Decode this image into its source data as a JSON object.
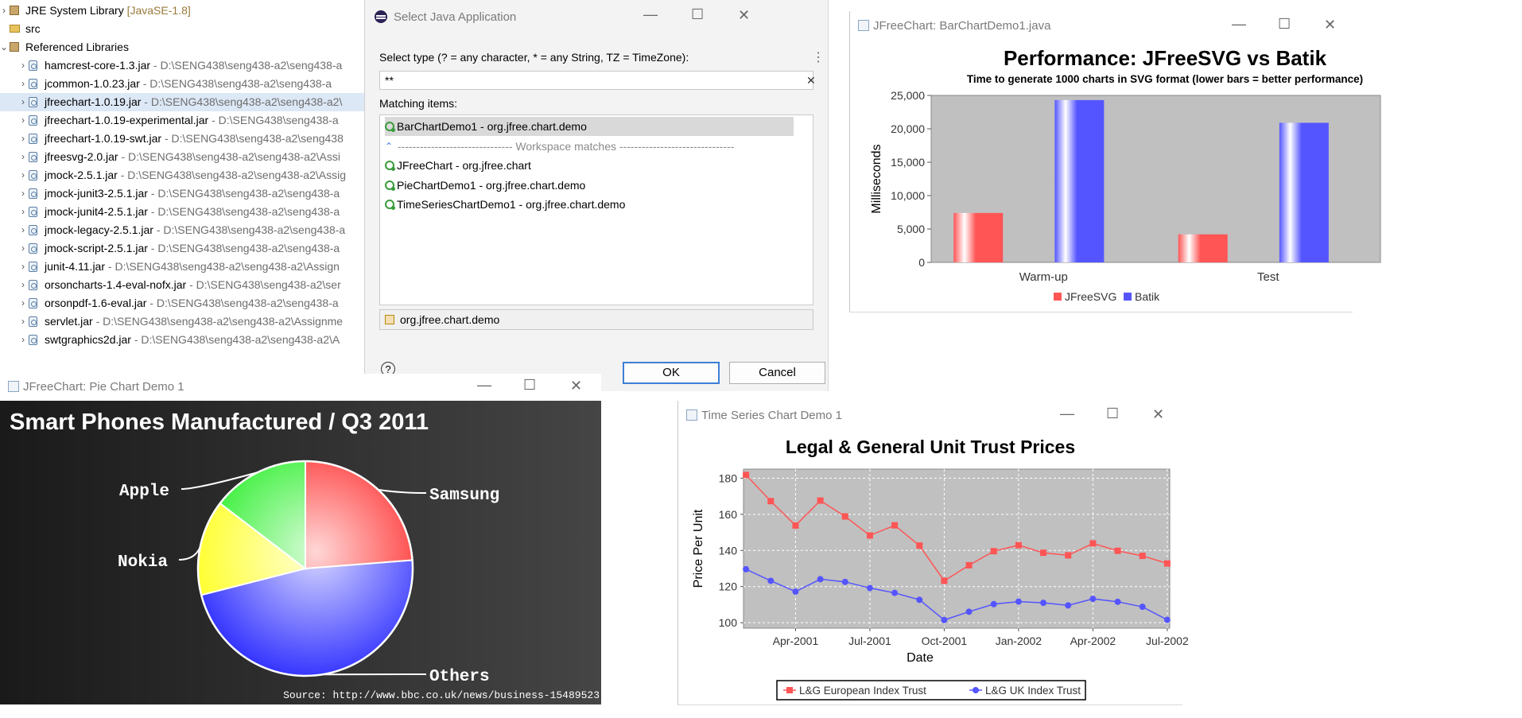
{
  "tree": {
    "items": [
      {
        "name": "JRE System Library",
        "path": "[JavaSE-1.8]",
        "expand": ">",
        "type": "lib",
        "top": 13,
        "indent": 12,
        "selected": false
      },
      {
        "name": "src",
        "path": "",
        "expand": "",
        "type": "src",
        "top": 36,
        "indent": 12,
        "selected": false
      },
      {
        "name": "Referenced Libraries",
        "path": "",
        "expand": "v",
        "type": "lib",
        "top": 59,
        "indent": 12,
        "selected": false
      },
      {
        "name": "hamcrest-core-1.3.jar",
        "path": " - D:\\SENG438\\seng438-a2\\seng438-a",
        "expand": ">",
        "type": "jar",
        "top": 82,
        "indent": 36,
        "selected": false
      },
      {
        "name": "jcommon-1.0.23.jar",
        "path": " - D:\\SENG438\\seng438-a2\\seng438-a",
        "expand": ">",
        "type": "jar",
        "top": 105,
        "indent": 36,
        "selected": false
      },
      {
        "name": "jfreechart-1.0.19.jar",
        "path": " - D:\\SENG438\\seng438-a2\\seng438-a2\\",
        "expand": ">",
        "type": "jar",
        "top": 128,
        "indent": 36,
        "selected": true
      },
      {
        "name": "jfreechart-1.0.19-experimental.jar",
        "path": " - D:\\SENG438\\seng438-a",
        "expand": ">",
        "type": "jar",
        "top": 151,
        "indent": 36,
        "selected": false
      },
      {
        "name": "jfreechart-1.0.19-swt.jar",
        "path": " - D:\\SENG438\\seng438-a2\\seng438",
        "expand": ">",
        "type": "jar",
        "top": 174,
        "indent": 36,
        "selected": false
      },
      {
        "name": "jfreesvg-2.0.jar",
        "path": " - D:\\SENG438\\seng438-a2\\seng438-a2\\Assi",
        "expand": ">",
        "type": "jar",
        "top": 197,
        "indent": 36,
        "selected": false
      },
      {
        "name": "jmock-2.5.1.jar",
        "path": " - D:\\SENG438\\seng438-a2\\seng438-a2\\Assig",
        "expand": ">",
        "type": "jar",
        "top": 220,
        "indent": 36,
        "selected": false
      },
      {
        "name": "jmock-junit3-2.5.1.jar",
        "path": " - D:\\SENG438\\seng438-a2\\seng438-a",
        "expand": ">",
        "type": "jar",
        "top": 243,
        "indent": 36,
        "selected": false
      },
      {
        "name": "jmock-junit4-2.5.1.jar",
        "path": " - D:\\SENG438\\seng438-a2\\seng438-a",
        "expand": ">",
        "type": "jar",
        "top": 266,
        "indent": 36,
        "selected": false
      },
      {
        "name": "jmock-legacy-2.5.1.jar",
        "path": " - D:\\SENG438\\seng438-a2\\seng438-a",
        "expand": ">",
        "type": "jar",
        "top": 289,
        "indent": 36,
        "selected": false
      },
      {
        "name": "jmock-script-2.5.1.jar",
        "path": " - D:\\SENG438\\seng438-a2\\seng438-a",
        "expand": ">",
        "type": "jar",
        "top": 312,
        "indent": 36,
        "selected": false
      },
      {
        "name": "junit-4.11.jar",
        "path": " - D:\\SENG438\\seng438-a2\\seng438-a2\\Assign",
        "expand": ">",
        "type": "jar",
        "top": 335,
        "indent": 36,
        "selected": false
      },
      {
        "name": "orsoncharts-1.4-eval-nofx.jar",
        "path": " - D:\\SENG438\\seng438-a2\\ser",
        "expand": ">",
        "type": "jar",
        "top": 358,
        "indent": 36,
        "selected": false
      },
      {
        "name": "orsonpdf-1.6-eval.jar",
        "path": " - D:\\SENG438\\seng438-a2\\seng438-a",
        "expand": ">",
        "type": "jar",
        "top": 381,
        "indent": 36,
        "selected": false
      },
      {
        "name": "servlet.jar",
        "path": " - D:\\SENG438\\seng438-a2\\seng438-a2\\Assignme",
        "expand": ">",
        "type": "jar",
        "top": 404,
        "indent": 36,
        "selected": false
      },
      {
        "name": "swtgraphics2d.jar",
        "path": " - D:\\SENG438\\seng438-a2\\seng438-a2\\A",
        "expand": ">",
        "type": "jar",
        "top": 427,
        "indent": 36,
        "selected": false
      }
    ]
  },
  "dialog": {
    "title": "Select Java Application",
    "select_label": "Select type (? = any character, * = any String, TZ = TimeZone):",
    "search_value": "**",
    "matching_label": "Matching items:",
    "items": [
      {
        "text": "BarChartDemo1 - org.jfree.chart.demo",
        "kind": "app",
        "selected": true
      },
      {
        "text": "------------------------------- Workspace matches -------------------------------",
        "kind": "sep",
        "selected": false
      },
      {
        "text": "JFreeChart - org.jfree.chart",
        "kind": "app",
        "selected": false
      },
      {
        "text": "PieChartDemo1 - org.jfree.chart.demo",
        "kind": "app",
        "selected": false
      },
      {
        "text": "TimeSeriesChartDemo1 - org.jfree.chart.demo",
        "kind": "app",
        "selected": false
      }
    ],
    "package_text": "org.jfree.chart.demo",
    "ok_label": "OK",
    "cancel_label": "Cancel",
    "help_glyph": "?",
    "clear_glyph": "✕",
    "menu_glyph": "⋮"
  },
  "window_controls": {
    "minimize": "—",
    "maximize": "☐",
    "close": "✕"
  },
  "bar_window": {
    "title": "JFreeChart: BarChartDemo1.java",
    "chart_data": {
      "type": "bar",
      "title": "Performance: JFreeSVG vs Batik",
      "subtitle": "Time to generate 1000 charts in SVG format (lower bars = better performance)",
      "xlabel": "",
      "ylabel": "Milliseconds",
      "categories": [
        "Warm-up",
        "Test"
      ],
      "series": [
        {
          "name": "JFreeSVG",
          "values": [
            7400,
            4200
          ],
          "color": "#ff5555"
        },
        {
          "name": "Batik",
          "values": [
            24300,
            20900
          ],
          "color": "#5555ff"
        }
      ],
      "ylim": [
        0,
        25000
      ],
      "yticks": [
        0,
        5000,
        10000,
        15000,
        20000,
        25000
      ],
      "ytick_labels": [
        "0",
        "5,000",
        "10,000",
        "15,000",
        "20,000",
        "25,000"
      ],
      "legend": "bottom",
      "grid": false
    }
  },
  "pie_window": {
    "title": "JFreeChart: Pie Chart Demo 1",
    "source": "Source: http://www.bbc.co.uk/news/business-15489523",
    "chart_data": {
      "type": "pie",
      "title": "Smart Phones Manufactured / Q3 2011",
      "labels": [
        "Samsung",
        "Others",
        "Nokia",
        "Apple"
      ],
      "values": [
        27.8,
        55.3,
        16.8,
        17.1
      ],
      "colors": [
        "#ff2020",
        "#2d2dff",
        "#ffff22",
        "#22ee22"
      ]
    }
  },
  "ts_window": {
    "title": "Time Series Chart Demo 1",
    "chart_data": {
      "type": "line",
      "title": "Legal & General Unit Trust Prices",
      "xlabel": "Date",
      "ylabel": "Price Per Unit",
      "x": [
        "2001-02",
        "2001-03",
        "2001-04",
        "2001-05",
        "2001-06",
        "2001-07",
        "2001-08",
        "2001-09",
        "2001-10",
        "2001-11",
        "2001-12",
        "2002-01",
        "2002-02",
        "2002-03",
        "2002-04",
        "2002-05",
        "2002-06",
        "2002-07"
      ],
      "xticks": [
        "2001-04",
        "2001-07",
        "2001-10",
        "2002-01",
        "2002-04",
        "2002-07"
      ],
      "xtick_labels": [
        "Apr-2001",
        "Jul-2001",
        "Oct-2001",
        "Jan-2002",
        "Apr-2002",
        "Jul-2002"
      ],
      "series": [
        {
          "name": "L&G European Index Trust",
          "values": [
            181.8,
            167.3,
            153.8,
            167.6,
            158.8,
            148.3,
            153.9,
            142.7,
            123.2,
            131.8,
            139.6,
            142.9,
            138.7,
            137.3,
            143.9,
            139.8,
            137.0,
            132.8
          ],
          "color": "#ff5555",
          "marker": "square"
        },
        {
          "name": "L&G UK Index Trust",
          "values": [
            129.6,
            123.2,
            117.2,
            124.1,
            122.6,
            119.2,
            116.5,
            112.7,
            101.5,
            106.1,
            110.3,
            111.7,
            111.0,
            109.6,
            113.2,
            111.6,
            108.8,
            101.6
          ],
          "color": "#5555ff",
          "marker": "circle"
        }
      ],
      "ylim": [
        97,
        185
      ],
      "yticks": [
        100,
        120,
        140,
        160,
        180
      ],
      "legend": "bottom",
      "grid": true
    }
  }
}
